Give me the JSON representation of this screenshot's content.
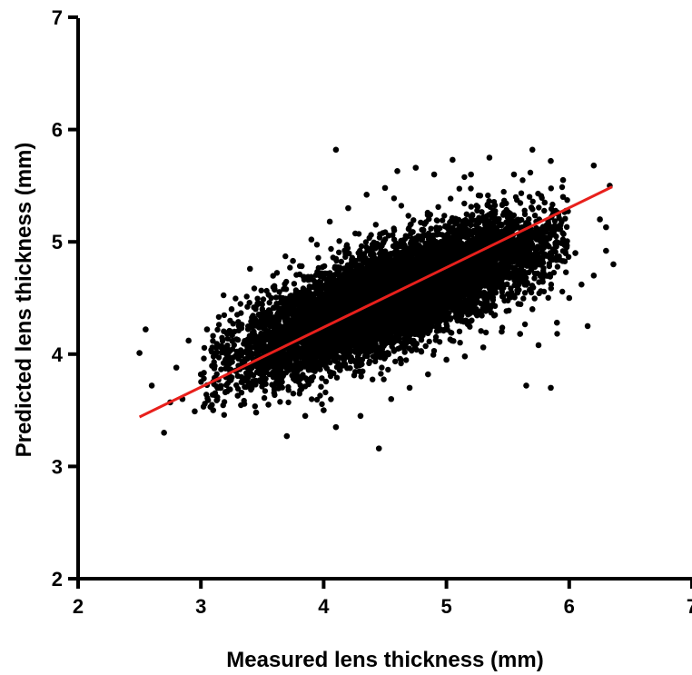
{
  "chart_data": {
    "type": "scatter",
    "title": "",
    "xlabel": "Measured lens thickness (mm)",
    "ylabel": "Predicted lens thickness (mm)",
    "xlim": [
      2,
      7
    ],
    "ylim": [
      2,
      7
    ],
    "x_ticks": [
      "2",
      "3",
      "4",
      "5",
      "6",
      "7"
    ],
    "y_ticks": [
      "2",
      "3",
      "4",
      "5",
      "6",
      "7"
    ],
    "grid": false,
    "legend": "none",
    "colors": {
      "points": "#000000",
      "fit_line": "#e8201c",
      "axes": "#000000"
    },
    "fit_line": {
      "x": [
        2.5,
        6.35
      ],
      "y": [
        3.44,
        5.49
      ]
    },
    "points": [
      [
        2.5,
        4.01
      ],
      [
        2.55,
        4.22
      ],
      [
        2.6,
        3.72
      ],
      [
        2.7,
        3.3
      ],
      [
        2.75,
        3.57
      ],
      [
        2.8,
        3.88
      ],
      [
        2.85,
        3.6
      ],
      [
        2.9,
        4.12
      ],
      [
        2.95,
        3.49
      ],
      [
        3.0,
        3.82
      ],
      [
        3.05,
        4.22
      ],
      [
        3.1,
        3.5
      ],
      [
        3.2,
        3.95
      ],
      [
        3.25,
        4.4
      ],
      [
        3.3,
        3.63
      ],
      [
        3.4,
        4.76
      ],
      [
        3.45,
        3.48
      ],
      [
        3.5,
        4.4
      ],
      [
        3.55,
        3.55
      ],
      [
        3.6,
        4.58
      ],
      [
        3.7,
        3.27
      ],
      [
        3.75,
        4.83
      ],
      [
        3.85,
        3.45
      ],
      [
        3.9,
        5.02
      ],
      [
        4.0,
        3.5
      ],
      [
        4.05,
        5.18
      ],
      [
        4.1,
        5.82
      ],
      [
        4.1,
        3.35
      ],
      [
        4.2,
        5.3
      ],
      [
        4.3,
        3.45
      ],
      [
        4.35,
        5.42
      ],
      [
        4.45,
        3.16
      ],
      [
        4.5,
        5.48
      ],
      [
        4.55,
        3.6
      ],
      [
        4.6,
        5.63
      ],
      [
        4.7,
        3.7
      ],
      [
        4.75,
        5.66
      ],
      [
        4.85,
        3.82
      ],
      [
        4.9,
        5.6
      ],
      [
        5.0,
        3.95
      ],
      [
        5.05,
        5.73
      ],
      [
        5.15,
        3.98
      ],
      [
        5.2,
        5.6
      ],
      [
        5.3,
        4.06
      ],
      [
        5.35,
        5.75
      ],
      [
        5.45,
        4.2
      ],
      [
        5.55,
        5.6
      ],
      [
        5.6,
        4.18
      ],
      [
        5.65,
        3.72
      ],
      [
        5.7,
        5.82
      ],
      [
        5.7,
        4.4
      ],
      [
        5.75,
        4.08
      ],
      [
        5.85,
        3.7
      ],
      [
        5.85,
        5.72
      ],
      [
        5.9,
        4.28
      ],
      [
        5.95,
        5.4
      ],
      [
        6.0,
        4.5
      ],
      [
        6.05,
        4.9
      ],
      [
        6.1,
        4.62
      ],
      [
        6.15,
        4.25
      ],
      [
        6.2,
        5.68
      ],
      [
        6.25,
        5.2
      ],
      [
        6.3,
        4.92
      ],
      [
        6.33,
        5.5
      ],
      [
        6.36,
        4.8
      ],
      [
        6.3,
        5.13
      ],
      [
        6.2,
        4.7
      ],
      [
        5.95,
        5.55
      ],
      [
        5.8,
        5.35
      ],
      [
        3.35,
        3.9
      ]
    ],
    "cloud": {
      "n": 9000,
      "x_mean": 4.55,
      "x_sd": 0.6,
      "y_intercept": 3.41,
      "y_slope": 0.24,
      "y_resid_sd": 0.21,
      "x_range": [
        3.0,
        6.0
      ],
      "y_range": [
        3.38,
        5.72
      ]
    }
  }
}
